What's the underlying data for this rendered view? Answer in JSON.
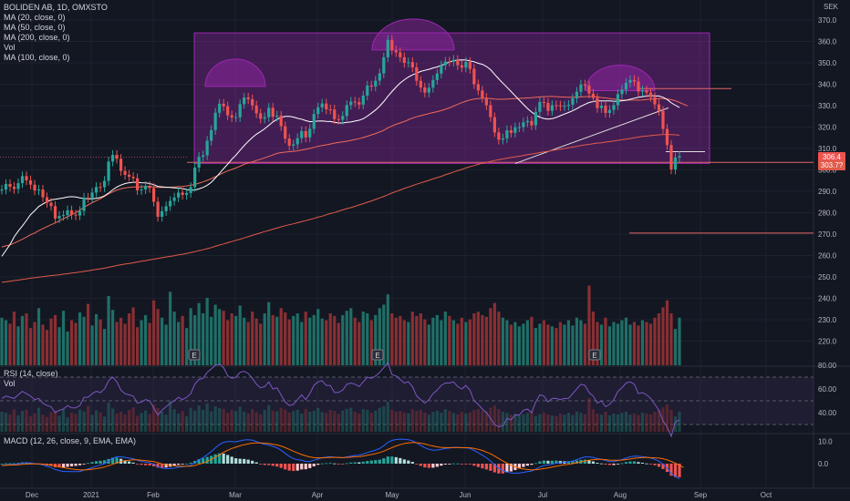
{
  "legend": {
    "symbol": "BOLIDEN AB, 1D, OMXSTO",
    "studies": [
      "MA (20, close, 0)",
      "MA (50, close, 0)",
      "MA (200, close, 0)",
      "Vol",
      "MA (100, close, 0)"
    ],
    "rsi_title": "RSI (14, close)",
    "rsi_vol": "Vol",
    "macd_title": "MACD (12, 26, close, 9, EMA, EMA)"
  },
  "currency": "SEK",
  "last_price": "306.4",
  "ma_value": "303.7?",
  "colors": {
    "bg": "#131722",
    "grid": "#1e222d",
    "up": "#26a69a",
    "down": "#ef5350",
    "upVol": "#1f6f67",
    "downVol": "#8a2f33",
    "ma20": "#ffffff",
    "ma50": "#f06a5a",
    "ma200": "#e05a4a",
    "rsi": "#7e57c2",
    "rsiBand": "rgba(126,87,194,0.10)",
    "macd": "#2962ff",
    "signal": "#ff6d00",
    "pattern": "rgba(156,39,176,0.35)",
    "patternStroke": "#9c27b0",
    "hline": "#e06666",
    "earnings": "#ff9800"
  },
  "chart_data": {
    "type": "candlestick",
    "x_axis_labels": [
      "Dec",
      "2021",
      "Feb",
      "Mar",
      "Apr",
      "May",
      "Jun",
      "Jul",
      "Aug",
      "Sep",
      "Oct"
    ],
    "price_ticks": [
      "370.0",
      "360.0",
      "350.0",
      "340.0",
      "330.0",
      "320.0",
      "310.0",
      "300.0",
      "290.0",
      "280.0",
      "270.0",
      "260.0",
      "250.0",
      "240.0",
      "230.0",
      "220.0"
    ],
    "rsi_ticks": [
      "80.00",
      "60.00",
      "40.00"
    ],
    "macd_ticks": [
      "10.0",
      "0.0"
    ],
    "ylim": [
      214,
      372
    ],
    "rsi_levels": [
      70,
      50,
      30
    ],
    "close": [
      290.8,
      293.4,
      292.1,
      291.1,
      293.8,
      297.1,
      295.1,
      293.1,
      290.4,
      290.8,
      287.2,
      284.6,
      283.1,
      277.3,
      278.5,
      278.9,
      281.1,
      279.1,
      278.7,
      280.8,
      287,
      286.9,
      289.4,
      292,
      291.9,
      294.9,
      303.9,
      307,
      305.2,
      299.5,
      297.7,
      296.8,
      296.1,
      290.5,
      290.9,
      292.5,
      291.5,
      285.1,
      278.1,
      280.7,
      283,
      285.5,
      287.1,
      289.4,
      288.3,
      289.2,
      292,
      301.1,
      306.1,
      306.8,
      313.6,
      318.6,
      326.7,
      330.9,
      329.7,
      325.5,
      324.5,
      324.6,
      330.7,
      333.8,
      333,
      330.1,
      326.4,
      323.9,
      324.6,
      329,
      324.8,
      325.4,
      320.4,
      314.6,
      311.3,
      311.9,
      314.8,
      318.1,
      315.2,
      319.2,
      326.1,
      329.2,
      331,
      328.3,
      328.2,
      323.7,
      323.4,
      325.2,
      330.3,
      331.9,
      331.6,
      330.5,
      334.7,
      339.4,
      338.9,
      341.7,
      345.1,
      352.6,
      360.7,
      355.8,
      354.9,
      352.6,
      350,
      350.3,
      347.9,
      341.6,
      338.5,
      336.1,
      338.4,
      342,
      345,
      348.8,
      350.6,
      350.5,
      351.4,
      348.9,
      347.8,
      350.4,
      347.2,
      340,
      337.1,
      333.7,
      330.2,
      324.6,
      317.5,
      314.1,
      314.7,
      318.5,
      317.3,
      319.9,
      320,
      322.2,
      322.9,
      320.8,
      327.1,
      331.7,
      331.3,
      327.6,
      330.2,
      330.1,
      329.7,
      329.9,
      330.4,
      333.4,
      336.5,
      339.9,
      339.4,
      335.6,
      333.6,
      328.9,
      330,
      326.6,
      328,
      330.2,
      335.4,
      337.5,
      340.7,
      342,
      341.3,
      336.6,
      337.1,
      336.1,
      334,
      330.6,
      327.5,
      319.1,
      311.6,
      300.2,
      305.8,
      306.4
    ],
    "open": [
      290.7,
      290.8,
      293.4,
      292.1,
      291.1,
      293.8,
      297.1,
      295.1,
      293.1,
      290.4,
      290.8,
      287.2,
      284.6,
      283.1,
      277.3,
      278.5,
      278.9,
      281.1,
      279.1,
      278.7,
      280.8,
      287,
      286.9,
      289.4,
      292,
      291.9,
      294.9,
      303.9,
      307,
      305.2,
      299.5,
      297.7,
      296.8,
      296.1,
      290.5,
      290.9,
      292.5,
      291.5,
      285.1,
      278.1,
      280.7,
      283,
      285.5,
      287.1,
      289.4,
      288.3,
      289.2,
      292,
      301.1,
      306.1,
      306.8,
      313.6,
      318.6,
      326.7,
      330.9,
      329.7,
      325.5,
      324.5,
      324.6,
      330.7,
      333.8,
      333,
      330.1,
      326.4,
      323.9,
      324.6,
      329,
      324.8,
      325.4,
      320.4,
      314.6,
      311.3,
      311.9,
      314.8,
      318.1,
      315.2,
      319.2,
      326.1,
      329.2,
      331,
      328.3,
      328.2,
      323.7,
      323.4,
      325.2,
      330.3,
      331.9,
      331.6,
      330.5,
      334.7,
      339.4,
      338.9,
      341.7,
      345.1,
      352.6,
      360.7,
      355.8,
      354.9,
      352.6,
      350,
      350.3,
      347.9,
      341.6,
      338.5,
      336.1,
      338.4,
      342,
      345,
      348.8,
      350.6,
      350.5,
      351.4,
      348.9,
      347.8,
      350.4,
      347.2,
      340,
      337.1,
      333.7,
      330.2,
      324.6,
      317.5,
      314.1,
      314.7,
      318.5,
      317.3,
      319.9,
      320,
      322.2,
      322.9,
      320.8,
      327.1,
      331.7,
      331.3,
      327.6,
      330.2,
      330.1,
      329.7,
      329.9,
      330.4,
      333.4,
      336.5,
      339.9,
      339.4,
      335.6,
      333.6,
      328.9,
      330,
      326.6,
      328,
      330.2,
      335.4,
      337.5,
      340.7,
      342,
      341.3,
      336.6,
      337.1,
      336.1,
      334,
      330.6,
      327.5,
      319.1,
      311.6,
      300.2,
      305.8
    ],
    "volume": [
      0.55,
      0.52,
      0.48,
      0.62,
      0.45,
      0.57,
      0.6,
      0.43,
      0.5,
      0.66,
      0.47,
      0.41,
      0.54,
      0.58,
      0.44,
      0.63,
      0.39,
      0.52,
      0.49,
      0.61,
      0.56,
      0.71,
      0.46,
      0.59,
      0.53,
      0.42,
      0.8,
      0.64,
      0.5,
      0.55,
      0.48,
      0.6,
      0.67,
      0.44,
      0.52,
      0.58,
      0.49,
      0.75,
      0.65,
      0.55,
      0.47,
      0.85,
      0.62,
      0.5,
      0.57,
      0.43,
      0.66,
      0.58,
      0.72,
      0.6,
      0.78,
      0.56,
      0.7,
      0.65,
      0.63,
      0.52,
      0.6,
      0.57,
      0.69,
      0.55,
      0.5,
      0.62,
      0.54,
      0.48,
      0.6,
      0.73,
      0.58,
      0.56,
      0.66,
      0.61,
      0.53,
      0.57,
      0.6,
      0.5,
      0.62,
      0.55,
      0.58,
      0.65,
      0.54,
      0.52,
      0.6,
      0.57,
      0.49,
      0.58,
      0.63,
      0.66,
      0.55,
      0.5,
      0.62,
      0.6,
      0.52,
      0.58,
      0.66,
      0.7,
      0.82,
      0.6,
      0.55,
      0.57,
      0.52,
      0.5,
      0.62,
      0.57,
      0.6,
      0.53,
      0.47,
      0.55,
      0.58,
      0.52,
      0.62,
      0.57,
      0.52,
      0.48,
      0.55,
      0.5,
      0.53,
      0.6,
      0.62,
      0.58,
      0.56,
      0.66,
      0.72,
      0.62,
      0.55,
      0.52,
      0.47,
      0.5,
      0.45,
      0.48,
      0.52,
      0.56,
      0.43,
      0.48,
      0.52,
      0.47,
      0.45,
      0.43,
      0.5,
      0.47,
      0.52,
      0.46,
      0.55,
      0.52,
      0.48,
      0.92,
      0.62,
      0.5,
      0.47,
      0.55,
      0.45,
      0.5,
      0.48,
      0.52,
      0.55,
      0.47,
      0.5,
      0.46,
      0.52,
      0.5,
      0.48,
      0.55,
      0.6,
      0.67,
      0.75,
      0.6,
      0.42,
      0.55
    ],
    "rsi": [
      52,
      54,
      53,
      52,
      55,
      58,
      56,
      54,
      51,
      52,
      48,
      46,
      45,
      40,
      42,
      43,
      46,
      44,
      44,
      46,
      53,
      53,
      56,
      58,
      57,
      60,
      67,
      70,
      66,
      59,
      56,
      55,
      54,
      48,
      49,
      51,
      50,
      44,
      38,
      42,
      45,
      48,
      50,
      53,
      51,
      53,
      56,
      64,
      68,
      69,
      74,
      77,
      80,
      81,
      78,
      71,
      69,
      70,
      74,
      75,
      73,
      69,
      64,
      61,
      62,
      66,
      60,
      61,
      55,
      49,
      46,
      47,
      51,
      55,
      51,
      56,
      63,
      66,
      67,
      63,
      63,
      57,
      57,
      59,
      64,
      65,
      64,
      62,
      66,
      70,
      69,
      71,
      74,
      78,
      82,
      72,
      71,
      68,
      65,
      66,
      62,
      54,
      51,
      48,
      51,
      56,
      59,
      63,
      65,
      65,
      66,
      62,
      60,
      63,
      59,
      50,
      47,
      43,
      40,
      35,
      30,
      28,
      29,
      35,
      34,
      38,
      38,
      42,
      43,
      40,
      49,
      55,
      54,
      49,
      52,
      52,
      51,
      52,
      52,
      56,
      60,
      64,
      63,
      57,
      54,
      48,
      50,
      45,
      47,
      51,
      58,
      61,
      65,
      66,
      64,
      56,
      57,
      55,
      52,
      47,
      42,
      33,
      28,
      20,
      32,
      34
    ],
    "macd": [
      -0.8,
      -0.5,
      -0.4,
      -0.4,
      -0.2,
      0.3,
      0.4,
      0.3,
      0,
      -0.1,
      -0.6,
      -1.2,
      -1.7,
      -2.6,
      -3.1,
      -3.5,
      -3.5,
      -3.6,
      -3.6,
      -3.5,
      -2.9,
      -2.4,
      -1.8,
      -1.1,
      -0.6,
      0,
      1.2,
      2.4,
      3.1,
      3.1,
      2.8,
      2.5,
      2.2,
      1.5,
      1,
      0.7,
      0.4,
      -0.3,
      -1.4,
      -2,
      -2.2,
      -2.2,
      -2,
      -1.6,
      -1.4,
      -1.2,
      -0.7,
      0.4,
      1.7,
      2.7,
      4,
      5.4,
      7.1,
      8.6,
      9.6,
      9.9,
      9.9,
      9.8,
      10.2,
      10.6,
      10.7,
      10.5,
      9.9,
      9.2,
      8.6,
      8.4,
      7.7,
      7.1,
      6,
      4.6,
      3.3,
      2.3,
      1.7,
      1.5,
      1,
      1,
      1.5,
      2.1,
      2.7,
      2.9,
      3.1,
      2.9,
      2.7,
      2.6,
      3,
      3.4,
      3.7,
      3.8,
      4.3,
      5,
      5.5,
      6.1,
      6.8,
      8,
      9.6,
      10.4,
      10.8,
      11,
      10.9,
      10.7,
      10.3,
      9.3,
      8.2,
      7.1,
      6.4,
      6.1,
      6.1,
      6.4,
      6.8,
      7,
      7.3,
      7.3,
      7.1,
      7.1,
      6.8,
      5.9,
      4.9,
      3.8,
      2.6,
      1.2,
      -0.5,
      -2.1,
      -3.2,
      -3.7,
      -4.2,
      -4.3,
      -4.2,
      -3.9,
      -3.5,
      -3.3,
      -2.5,
      -1.5,
      -0.8,
      -0.6,
      -0.2,
      0.2,
      0.4,
      0.6,
      0.8,
      1.2,
      1.8,
      2.5,
      3,
      3,
      2.8,
      2.3,
      2,
      1.4,
      1,
      0.9,
      1.3,
      1.8,
      2.5,
      3.1,
      3.4,
      3.3,
      3.1,
      2.9,
      2.5,
      1.9,
      1.1,
      -0.2,
      -2,
      -4.4,
      -5.8,
      -6.8
    ],
    "signal": [
      -0.8,
      -0.7,
      -0.6,
      -0.6,
      -0.5,
      -0.3,
      -0.2,
      -0.1,
      -0.1,
      -0.1,
      -0.2,
      -0.4,
      -0.7,
      -1,
      -1.4,
      -1.8,
      -2.1,
      -2.4,
      -2.6,
      -2.8,
      -2.8,
      -2.7,
      -2.5,
      -2.2,
      -1.9,
      -1.5,
      -0.9,
      -0.3,
      0.4,
      0.9,
      1.3,
      1.5,
      1.7,
      1.7,
      1.5,
      1.4,
      1.2,
      0.9,
      0.4,
      -0.1,
      -0.5,
      -0.8,
      -1,
      -1.1,
      -1.2,
      -1.2,
      -1.1,
      -0.8,
      -0.3,
      0.3,
      1,
      1.9,
      2.9,
      4,
      5.1,
      6,
      6.8,
      7.4,
      8,
      8.5,
      8.9,
      9.2,
      9.3,
      9.3,
      9.2,
      9,
      8.7,
      8.4,
      7.9,
      7.2,
      6.4,
      5.6,
      4.8,
      4.1,
      3.5,
      3,
      2.7,
      2.6,
      2.6,
      2.7,
      2.8,
      2.8,
      2.8,
      2.7,
      2.8,
      2.9,
      3.1,
      3.2,
      3.4,
      3.8,
      4.1,
      4.5,
      5,
      5.6,
      6.4,
      7.2,
      7.9,
      8.5,
      9,
      9.3,
      9.5,
      9.4,
      9.2,
      8.8,
      8.3,
      7.9,
      7.5,
      7.3,
      7.2,
      7.2,
      7.2,
      7.2,
      7.2,
      7.2,
      7.1,
      6.8,
      6.4,
      5.9,
      5.2,
      4.4,
      3.4,
      2.3,
      1.2,
      0.2,
      -0.7,
      -1.4,
      -2,
      -2.4,
      -2.6,
      -2.8,
      -2.7,
      -2.5,
      -2.2,
      -1.9,
      -1.5,
      -1.2,
      -0.8,
      -0.5,
      -0.3,
      0,
      0.4,
      0.8,
      1.2,
      1.6,
      1.8,
      1.9,
      1.9,
      1.8,
      1.6,
      1.5,
      1.5,
      1.6,
      1.8,
      2.1,
      2.4,
      2.6,
      2.7,
      2.8,
      2.7,
      2.6,
      2.5,
      2.2,
      1.7,
      1,
      0.2,
      -0.7,
      -1.7
    ],
    "ma20": [
      259.6,
      262.4,
      265.1,
      268.7,
      271.4,
      273.8,
      276.4,
      279.1,
      280.9,
      282.9,
      284.1,
      285.1,
      286,
      286.3,
      286.6,
      286.9,
      287.3,
      287.5,
      287.3,
      286.9,
      286.7,
      286.5,
      286.5,
      286.7,
      287.1,
      287.9,
      289.2,
      290.7,
      292,
      292.9,
      293.6,
      294,
      294.2,
      294.2,
      294,
      293.9,
      293.6,
      293.1,
      292.3,
      292.1,
      291.9,
      291.8,
      291.6,
      291.5,
      291.3,
      290.8,
      290.5,
      290.6,
      291.1,
      291.8,
      292.8,
      294.2,
      296.2,
      298.4,
      300.6,
      302.7,
      305,
      306.9,
      309.2,
      311.3,
      313.3,
      315.1,
      316.7,
      317.9,
      319.2,
      320.8,
      322.4,
      323.6,
      324.5,
      325,
      325,
      324.7,
      324.1,
      323.7,
      323,
      322.5,
      322.6,
      322.8,
      322.9,
      322.7,
      322.6,
      322.2,
      321.9,
      321.9,
      322.2,
      322.4,
      322.8,
      323.2,
      323.9,
      325.1,
      326.5,
      328,
      329.8,
      331.9,
      334.4,
      336.6,
      338.7,
      340.6,
      342.1,
      343.4,
      344.4,
      345.2,
      346,
      346.5,
      347,
      347.6,
      348.1,
      348.8,
      349.6,
      350.4,
      351,
      351.3,
      351.4,
      351.3,
      350.9,
      350.5,
      349.8,
      349.3,
      348.3,
      346.8,
      344.6,
      342.5,
      340.5,
      338.6,
      336.6,
      334.6,
      332.6,
      330.6,
      328.7,
      327,
      325.6,
      324.6,
      324,
      323.7,
      323.9,
      324.5,
      325.3,
      326.1,
      326.8,
      327.6,
      328.6,
      329.7,
      330.6,
      331.5,
      331.9,
      332.2,
      332.2,
      332.2,
      332.2,
      332.1,
      332,
      332.3,
      332.5,
      333,
      333.5,
      333.9,
      334.2,
      334.5,
      334.7,
      334.6,
      334.5,
      333.9,
      332.9,
      331.3,
      330.2,
      329.1
    ],
    "ma50": [
      264,
      264.5,
      265,
      265.8,
      266.7,
      267.6,
      268.6,
      269.7,
      270.5,
      271.6,
      272.6,
      273.5,
      274.4,
      275.2,
      276.2,
      277.2,
      278.1,
      279.1,
      280.1,
      281.2,
      282.6,
      283.6,
      284.7,
      285.6,
      286.5,
      287.6,
      288.8,
      289.7,
      290.6,
      291.2,
      291.6,
      291.8,
      292,
      292.1,
      292.1,
      292.2,
      292.3,
      292.1,
      291.8,
      291.8,
      291.8,
      291.9,
      292,
      292.2,
      292.3,
      292.5,
      292.8,
      293.2,
      293.8,
      294.4,
      295.1,
      295.9,
      296.8,
      297.8,
      298.7,
      299.5,
      300.2,
      300.9,
      301.7,
      302.6,
      303.3,
      303.8,
      304.4,
      305,
      305.6,
      306.3,
      307,
      307.7,
      308.1,
      308.3,
      308.5,
      308.7,
      308.9,
      309.3,
      309.6,
      310,
      310.5,
      311,
      311.4,
      311.7,
      312.1,
      312.5,
      312.8,
      313.1,
      313.4,
      313.8,
      314.2,
      314.6,
      315.1,
      315.7,
      316.4,
      317,
      317.7,
      318.5,
      319.6,
      320.5,
      321.3,
      321.9,
      322.6,
      323.4,
      324.2,
      324.8,
      325.3,
      325.8,
      326.3,
      326.8,
      327.2,
      327.7,
      328.3,
      329,
      329.8,
      330.6,
      331.4,
      332.1,
      332.7,
      333.1,
      333.3,
      333.5,
      333.5,
      333.3,
      333.1,
      333,
      333,
      333.1,
      333.2,
      333.3,
      333.4,
      333.5,
      333.6,
      333.7,
      333.9,
      334.1,
      334.2,
      334.3,
      334.3,
      334.2,
      334.1,
      334,
      333.9,
      333.9,
      333.9,
      334.1,
      334.2,
      334.3,
      334.2,
      334.1,
      333.8,
      333.6,
      333.3,
      333.1,
      332.8,
      332.7,
      332.6,
      332.6,
      332.6,
      332.6,
      332.7,
      332.9,
      333.1,
      333.2,
      333.3,
      333.3,
      333.1,
      332.8,
      332.3,
      331.5,
      330.7,
      329.9
    ],
    "ma200": [
      247.5,
      247.7,
      248,
      248.3,
      248.5,
      248.8,
      249.1,
      249.4,
      249.6,
      249.9,
      250.1,
      250.4,
      250.6,
      250.8,
      251,
      251.3,
      251.5,
      251.8,
      252,
      252.3,
      252.6,
      252.9,
      253.2,
      253.5,
      253.8,
      254.1,
      254.5,
      254.9,
      255.3,
      255.7,
      256,
      256.3,
      256.6,
      257,
      257.3,
      257.6,
      258,
      258.3,
      258.6,
      259,
      259.3,
      259.6,
      259.9,
      260.3,
      260.6,
      261,
      261.4,
      261.8,
      262.3,
      262.7,
      263.2,
      263.7,
      264.3,
      264.9,
      265.4,
      266,
      266.5,
      267.1,
      267.6,
      268.2,
      268.8,
      269.4,
      270,
      270.6,
      271.2,
      271.7,
      272.3,
      272.8,
      273.4,
      273.9,
      274.4,
      274.8,
      275.3,
      275.8,
      276.3,
      276.8,
      277.3,
      277.9,
      278.4,
      279,
      279.6,
      280.1,
      280.7,
      281.3,
      281.9,
      282.4,
      283,
      283.6,
      284.2,
      284.9,
      285.5,
      286.2,
      286.9,
      287.6,
      288.4,
      289.2,
      289.9,
      290.6,
      291.3,
      292,
      292.6,
      293.3,
      293.9,
      294.5,
      295.1,
      295.8,
      296.4,
      297,
      297.7,
      298.3,
      299,
      299.6,
      300.2,
      300.9,
      301.5,
      302,
      302.6,
      303.1,
      303.5,
      303.9,
      304.4,
      304.8,
      305.1,
      305.5,
      305.8,
      306.1,
      306.4,
      306.7,
      307.1,
      307.4,
      307.7,
      308.1,
      308.4,
      308.7,
      309.1,
      309.4,
      309.7,
      310,
      310.4,
      310.7,
      311,
      311.4,
      311.7,
      311.9,
      312.2,
      312.5,
      312.7,
      313,
      313.2,
      313.5,
      313.8,
      314.1,
      314.4,
      314.7,
      315,
      315.3,
      315.6,
      315.8,
      316,
      316.2,
      316.4,
      316.5,
      316.6,
      316.5,
      316.4,
      316.2
    ],
    "earnings_markers": [
      "E",
      "E",
      "E"
    ],
    "pattern": "Triple top / rectangle range (approx. 303 – 364)",
    "hlines": [
      338,
      308.5,
      303.5,
      270.5
    ]
  }
}
